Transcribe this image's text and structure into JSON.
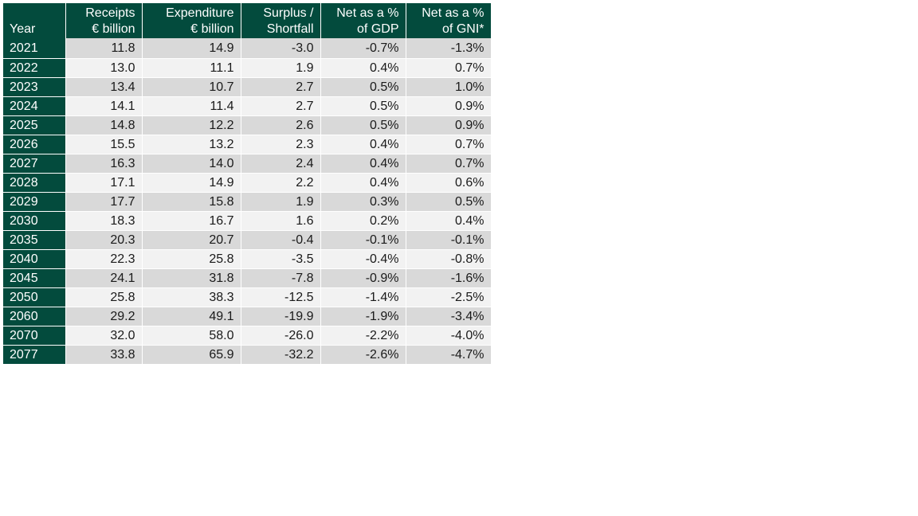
{
  "table": {
    "headers": [
      {
        "line1": "",
        "line2": "Year"
      },
      {
        "line1": "Receipts",
        "line2": "€ billion"
      },
      {
        "line1": "Expenditure",
        "line2": "€ billion"
      },
      {
        "line1": "Surplus /",
        "line2": "Shortfall"
      },
      {
        "line1": "Net as a %",
        "line2": "of GDP"
      },
      {
        "line1": "Net as a %",
        "line2": "of GNI*"
      }
    ],
    "rows": [
      [
        "2021",
        "11.8",
        "14.9",
        "-3.0",
        "-0.7%",
        "-1.3%"
      ],
      [
        "2022",
        "13.0",
        "11.1",
        "1.9",
        "0.4%",
        "0.7%"
      ],
      [
        "2023",
        "13.4",
        "10.7",
        "2.7",
        "0.5%",
        "1.0%"
      ],
      [
        "2024",
        "14.1",
        "11.4",
        "2.7",
        "0.5%",
        "0.9%"
      ],
      [
        "2025",
        "14.8",
        "12.2",
        "2.6",
        "0.5%",
        "0.9%"
      ],
      [
        "2026",
        "15.5",
        "13.2",
        "2.3",
        "0.4%",
        "0.7%"
      ],
      [
        "2027",
        "16.3",
        "14.0",
        "2.4",
        "0.4%",
        "0.7%"
      ],
      [
        "2028",
        "17.1",
        "14.9",
        "2.2",
        "0.4%",
        "0.6%"
      ],
      [
        "2029",
        "17.7",
        "15.8",
        "1.9",
        "0.3%",
        "0.5%"
      ],
      [
        "2030",
        "18.3",
        "16.7",
        "1.6",
        "0.2%",
        "0.4%"
      ],
      [
        "2035",
        "20.3",
        "20.7",
        "-0.4",
        "-0.1%",
        "-0.1%"
      ],
      [
        "2040",
        "22.3",
        "25.8",
        "-3.5",
        "-0.4%",
        "-0.8%"
      ],
      [
        "2045",
        "24.1",
        "31.8",
        "-7.8",
        "-0.9%",
        "-1.6%"
      ],
      [
        "2050",
        "25.8",
        "38.3",
        "-12.5",
        "-1.4%",
        "-2.5%"
      ],
      [
        "2060",
        "29.2",
        "49.1",
        "-19.9",
        "-1.9%",
        "-3.4%"
      ],
      [
        "2070",
        "32.0",
        "58.0",
        "-26.0",
        "-2.2%",
        "-4.0%"
      ],
      [
        "2077",
        "33.8",
        "65.9",
        "-32.2",
        "-2.6%",
        "-4.7%"
      ]
    ]
  },
  "colors": {
    "header_bg": "#034b3d",
    "header_text": "#ffffff",
    "row_shade_dark": "#d9d9d9",
    "row_shade_light": "#f2f2f2"
  }
}
